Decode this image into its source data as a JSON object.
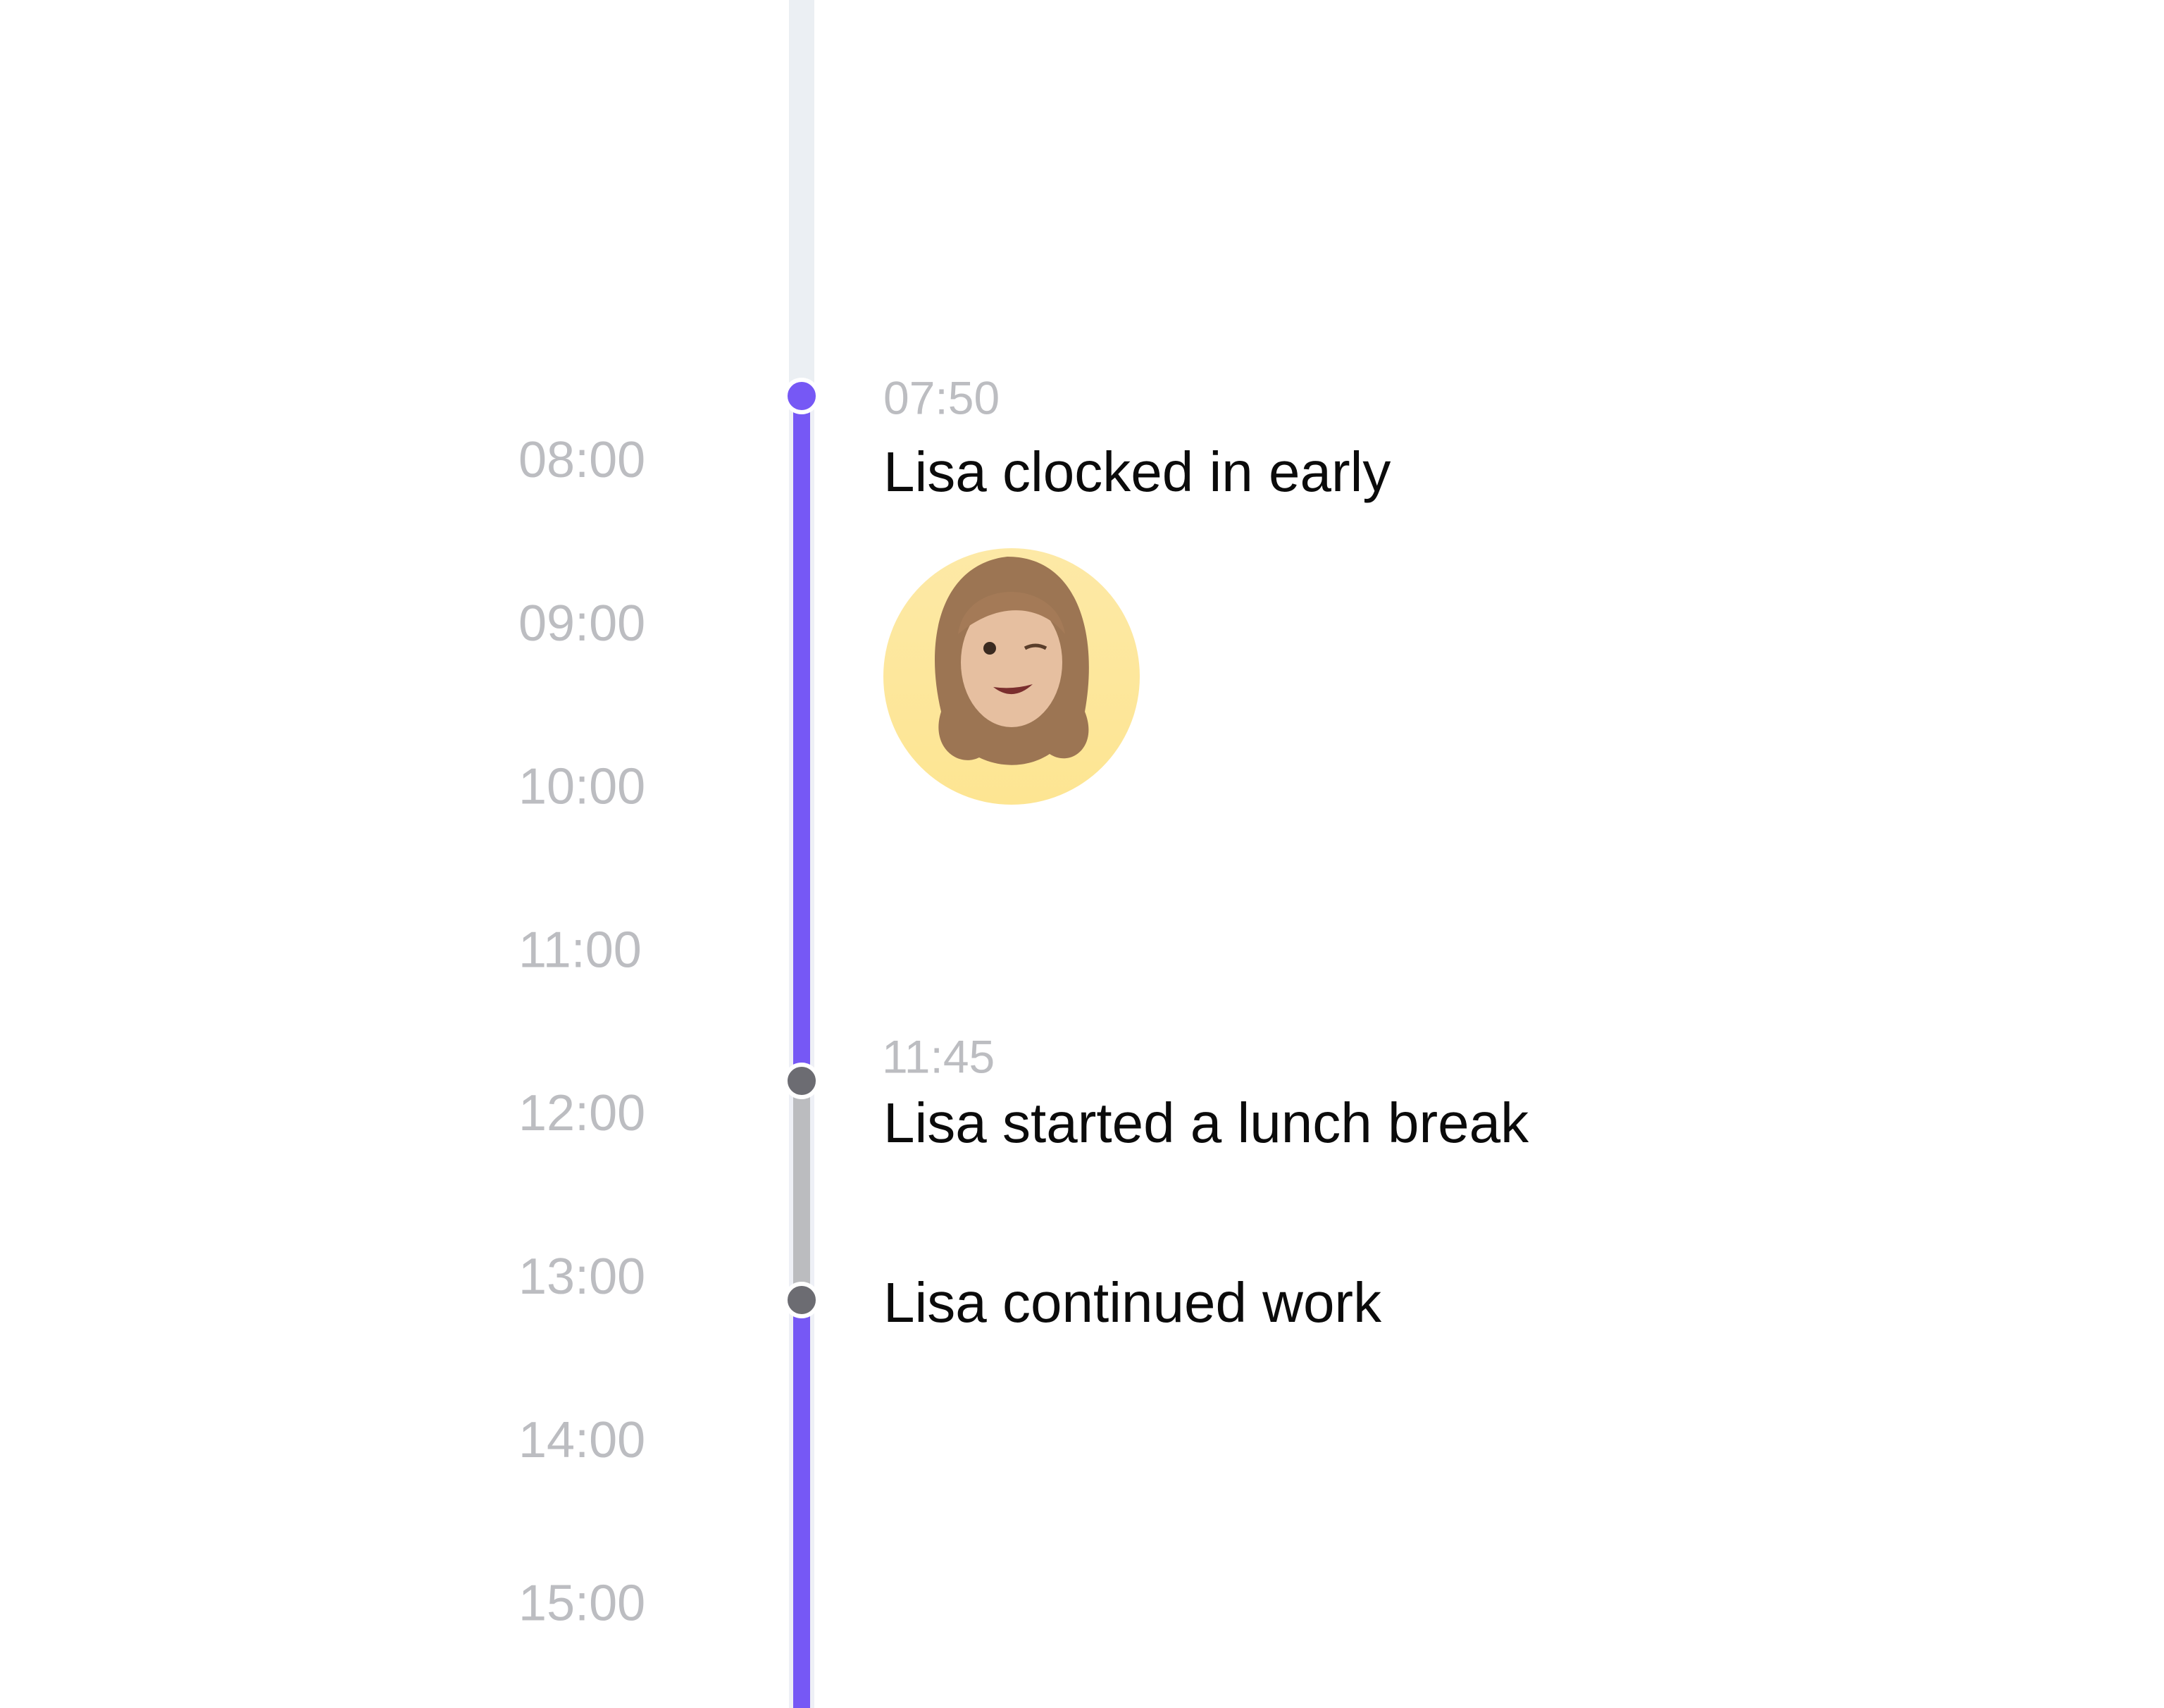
{
  "hours": [
    "08:00",
    "09:00",
    "10:00",
    "11:00",
    "12:00",
    "13:00",
    "14:00",
    "15:00"
  ],
  "events": [
    {
      "time": "07:50",
      "title": "Lisa clocked in early"
    },
    {
      "time": "11:45",
      "title": "Lisa started a lunch break"
    },
    {
      "title": "Lisa continued work"
    }
  ]
}
